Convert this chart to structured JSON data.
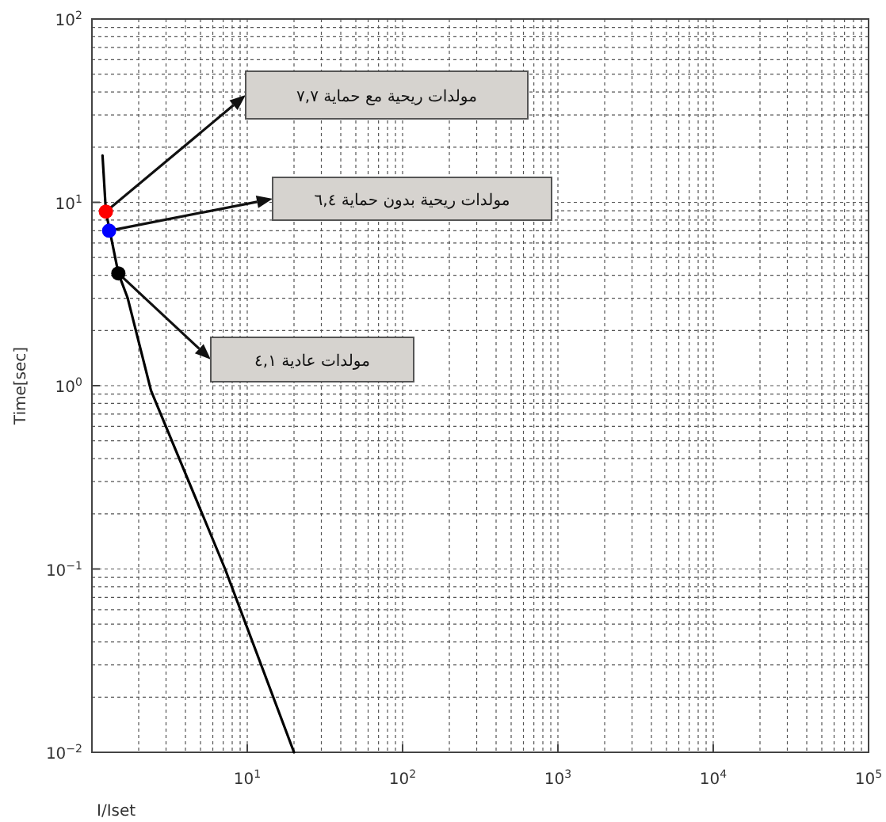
{
  "chart_data": {
    "type": "line",
    "xlabel": "I/Iset",
    "ylabel": "Time[sec]",
    "log": "xy",
    "grid": true,
    "xlim": [
      1,
      100000
    ],
    "ylim": [
      0.01,
      100
    ],
    "xticks": [
      {
        "value": 1,
        "label": null
      },
      {
        "value": 10,
        "label": "10$^{1}$"
      },
      {
        "value": 100,
        "label": "10$^{2}$"
      },
      {
        "value": 1000,
        "label": "10$^{3}$"
      },
      {
        "value": 10000,
        "label": "10$^{4}$"
      },
      {
        "value": 100000,
        "label": "10$^{5}$"
      }
    ],
    "yticks": [
      {
        "value": 0.01,
        "label": "10$^{−2}$"
      },
      {
        "value": 0.1,
        "label": "10$^{−1}$"
      },
      {
        "value": 1,
        "label": "10$^{0}$"
      },
      {
        "value": 10,
        "label": "10$^{1}$"
      },
      {
        "value": 100,
        "label": "10$^{2}$"
      }
    ],
    "series": [
      {
        "type": "line",
        "color": "#000000",
        "x": [
          1.17,
          1.23,
          1.48,
          1.7,
          2.4,
          7.2,
          20
        ],
        "values": [
          18,
          8.9,
          4.1,
          3.0,
          0.94,
          0.1,
          0.01
        ]
      },
      {
        "type": "scatter",
        "marker": "circle",
        "x": [
          1.23,
          1.29,
          1.48
        ],
        "values": [
          8.9,
          7.0,
          4.1
        ],
        "colors": [
          "#ff0000",
          "#0000ff",
          "#000000"
        ]
      }
    ],
    "annotations": [
      "مولدات ريحية مع حماية ٧,٧",
      "مولدات ريحية بدون حماية ٦,٤",
      "مولدات عادية ٤,١"
    ]
  }
}
